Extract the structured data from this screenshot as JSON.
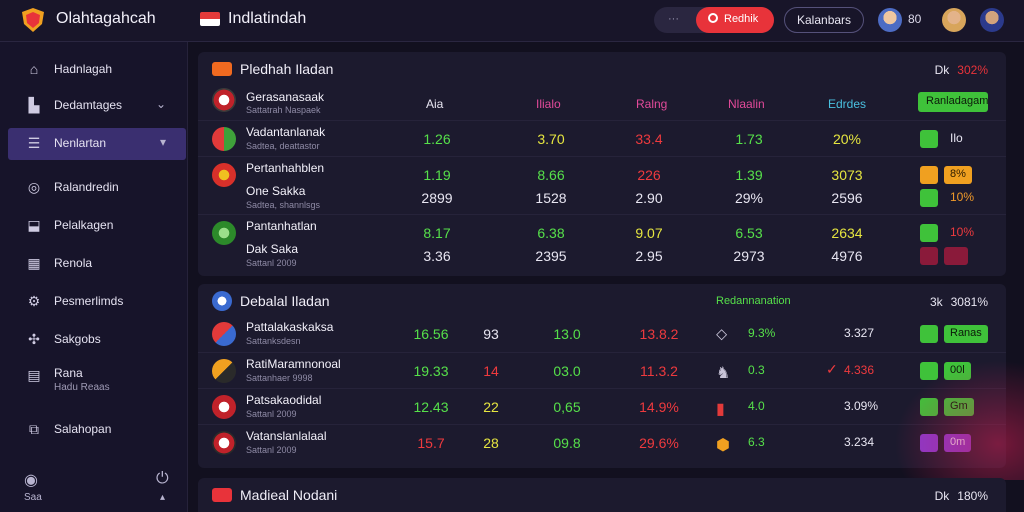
{
  "header": {
    "app_title": "Olahtagahcah",
    "page_subtitle": "Indlatindah",
    "search_placeholder": "···",
    "search_label": "Redhik",
    "account_label": "Kalanbars",
    "count_label": "80"
  },
  "sidebar": {
    "items": [
      {
        "label": "Hadnlagah",
        "icon": "home-icon"
      },
      {
        "label": "Dedamtages",
        "icon": "building-icon"
      },
      {
        "label": "Nenlartan",
        "icon": "list-icon"
      },
      {
        "label": "Ralandredin",
        "icon": "chat-icon"
      },
      {
        "label": "Pelalkagen",
        "icon": "tag-icon"
      },
      {
        "label": "Renola",
        "icon": "calendar-icon"
      },
      {
        "label": "Pesmerlimds",
        "icon": "gear-icon"
      },
      {
        "label": "Sakgobs",
        "icon": "cross-icon"
      },
      {
        "label": "Rana",
        "sub": "Hadu Reaas",
        "icon": "chart-icon"
      },
      {
        "label": "Salahopan",
        "icon": "stack-icon"
      }
    ],
    "footer_label": "Saa"
  },
  "panel1": {
    "title": "Pledhah Iladan",
    "right_label": "Dk",
    "right_pct": "302%",
    "columns": [
      "Aia",
      "Ilialo",
      "Ralng",
      "Nlaalin",
      "Edrdes"
    ],
    "cta_label": "Ranladagam",
    "rows": [
      {
        "name": "Gerasanasaak",
        "sub": "Sattatrah Naspaek",
        "values": [
          "",
          "",
          "",
          "",
          ""
        ],
        "tail": "",
        "extra": ""
      },
      {
        "name": "Vadantanlanak",
        "sub": "Sadtea, deattastor",
        "values": [
          "1.26",
          "3.70",
          "33.4",
          "1.73",
          "20%"
        ],
        "tail": "Ilo",
        "extra": ""
      },
      {
        "name": "Pertanhahblen",
        "sub": "",
        "values": [
          "1.19",
          "8.66",
          "226",
          "1.39",
          "3073"
        ],
        "tail": "8%",
        "extra": ""
      },
      {
        "name": "One Sakka",
        "sub": "Sadtea, shannlsgs",
        "values": [
          "2899",
          "1528",
          "2.90",
          "29%",
          "2596"
        ],
        "tail": "10%",
        "extra": ""
      },
      {
        "name": "Pantanhatlan",
        "sub": "",
        "values": [
          "8.17",
          "6.38",
          "9.07",
          "6.53",
          "2634"
        ],
        "tail": "10%",
        "extra": ""
      },
      {
        "name": "Dak Saka",
        "sub": "Sattanl 2009",
        "values": [
          "3.36",
          "2395",
          "2.95",
          "2973",
          "4976"
        ],
        "tail": "",
        "extra": ""
      }
    ]
  },
  "panel2": {
    "title": "Debalal Iladan",
    "mid_label": "Redannanation",
    "right_label": "3k",
    "right_pct": "3081%",
    "rows": [
      {
        "name": "Pattalakaskaksa",
        "sub": "Sattanksdesn",
        "values": [
          "16.56",
          "93",
          "13.0",
          "13.8.2"
        ],
        "pct": "9.3%",
        "num": "3.327",
        "btn": "Ranas"
      },
      {
        "name": "RatiMaramnonoal",
        "sub": "Sattanhaer 9998",
        "values": [
          "19.33",
          "14",
          "03.0",
          "11.3.2"
        ],
        "pct": "0.3",
        "num": "4.336",
        "btn": "00l"
      },
      {
        "name": "Patsakaodidal",
        "sub": "Sattanl 2009",
        "values": [
          "12.43",
          "22",
          "0,65",
          "14.9%"
        ],
        "pct": "4.0",
        "num": "3.09%",
        "btn": "Gm"
      },
      {
        "name": "Vatanslanlalaal",
        "sub": "Sattanl 2009",
        "values": [
          "15.7",
          "28",
          "09.8",
          "29.6%"
        ],
        "pct": "6.3",
        "num": "3.234",
        "btn": "0m"
      }
    ]
  },
  "panel3": {
    "title": "Madieal Nodani",
    "right_label": "Dk",
    "right_pct": "180%"
  },
  "colors": {
    "accent": "#e8333a",
    "active_nav": "#3a2f70",
    "positive": "#56e04a",
    "warning": "#e6e640",
    "negative": "#ee3a3e"
  }
}
